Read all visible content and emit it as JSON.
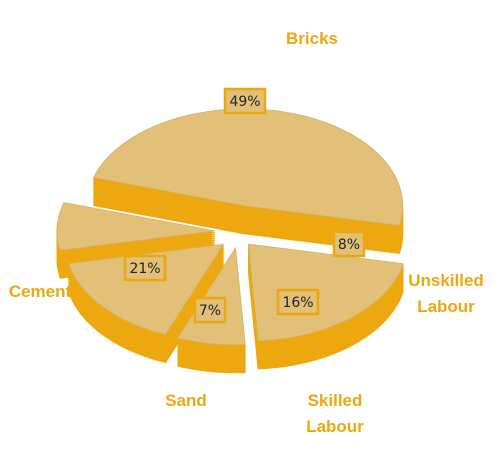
{
  "colors": {
    "top": "#E2C077",
    "side": "#EDA810",
    "label_text": "#EDA810",
    "label_box_border": "#EDA810",
    "label_box_fill": "#E2C077"
  },
  "chart_data": {
    "type": "pie",
    "style": "3d-exploded",
    "categories": [
      "Bricks",
      "Cement",
      "Sand",
      "Skilled Labour",
      "Unskilled Labour"
    ],
    "values": [
      49,
      21,
      7,
      16,
      8
    ],
    "value_labels": [
      "49%",
      "21%",
      "7%",
      "16%",
      "8%"
    ],
    "category_labels": [
      [
        "Bricks"
      ],
      [
        "Cement"
      ],
      [
        "Sand"
      ],
      [
        "Skilled",
        "Labour"
      ],
      [
        "Unskilled",
        "Labour"
      ]
    ]
  }
}
